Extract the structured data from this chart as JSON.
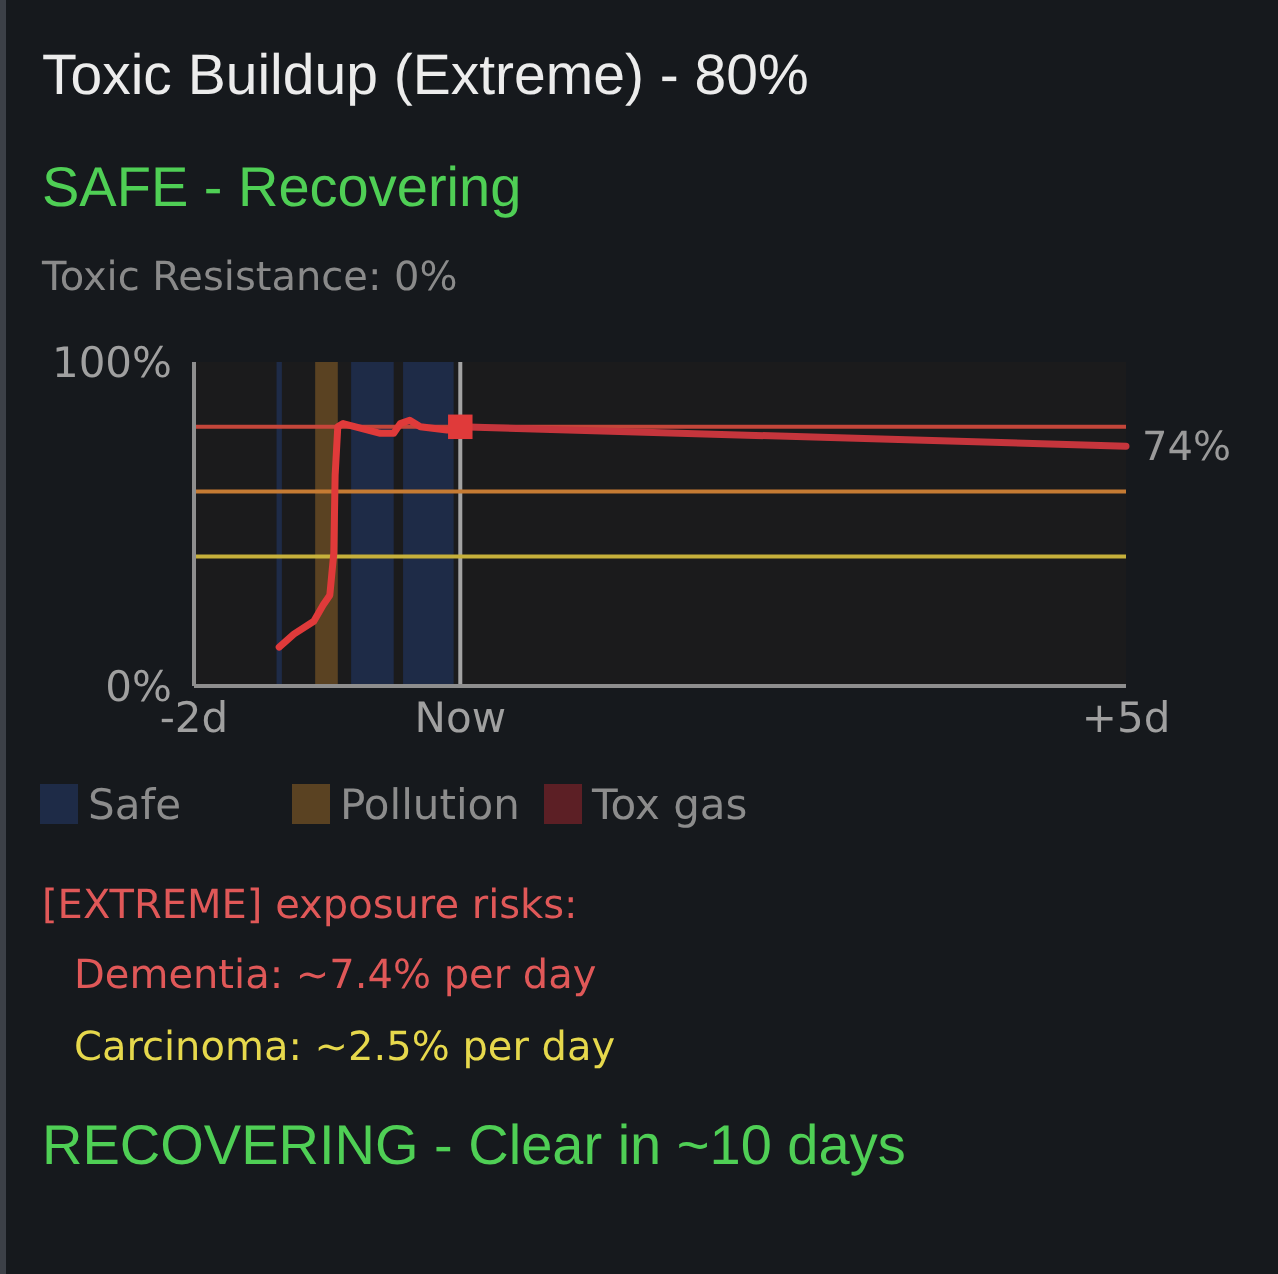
{
  "chart_data": {
    "type": "line",
    "title": "Toxic Buildup (Extreme) - 80%",
    "subtitle": "SAFE - Recovering",
    "xlim": [
      -2,
      5
    ],
    "xticks": [
      {
        "value": -2,
        "label": "-2d"
      },
      {
        "value": 0,
        "label": "Now"
      },
      {
        "value": 5,
        "label": "+5d"
      }
    ],
    "ylim": [
      0,
      100
    ],
    "yticks": [
      {
        "value": 0,
        "label": "0%"
      },
      {
        "value": 100,
        "label": "100%"
      }
    ],
    "series": [
      {
        "color": "#e03a3a",
        "x": [
          -1.36,
          -1.25,
          -1.1,
          -1.03,
          -0.98,
          -0.95,
          -0.94,
          -0.92,
          -0.88,
          -0.6,
          -0.5,
          -0.45,
          -0.38,
          -0.3,
          -0.1,
          0
        ],
        "values": [
          12,
          16,
          20,
          25,
          28,
          41,
          65,
          80,
          81,
          78,
          78,
          81,
          82,
          80,
          79,
          80
        ]
      },
      {
        "color": "#c5353c",
        "x": [
          0,
          5
        ],
        "values": [
          80,
          74
        ]
      },
      {
        "type": "scatter",
        "color": "#e03a3a",
        "marker": "square",
        "x": [
          0
        ],
        "values": [
          80
        ]
      },
      {
        "name": "Tox gas",
        "type": "area",
        "color": "#5c1f25"
      }
    ],
    "bands": [
      {
        "axis": "x",
        "from": -1.38,
        "to": -1.34,
        "label": "Safe",
        "color": "#1e2b47"
      },
      {
        "axis": "x",
        "from": -1.09,
        "to": -0.92,
        "label": "Pollution",
        "color": "#5a4222"
      },
      {
        "axis": "x",
        "from": -0.82,
        "to": -0.5,
        "color": "#1e2b47"
      },
      {
        "axis": "x",
        "from": -0.43,
        "to": -0.05,
        "color": "#1e2b47"
      }
    ],
    "ref_lines": [
      {
        "axis": "x",
        "value": 0,
        "color": "#a3a3a3"
      },
      {
        "axis": "y",
        "value": 80,
        "color": "#c4463a"
      },
      {
        "axis": "y",
        "value": 60,
        "color": "#c57b33"
      },
      {
        "axis": "y",
        "value": 40,
        "color": "#c6b03b"
      }
    ],
    "legend": "bottom",
    "annotations": [
      "Toxic Resistance: 0%",
      {
        "text": "74%",
        "x": 5,
        "y": 74
      },
      "[EXTREME] exposure risks:",
      "Dementia: ~7.4% per day",
      "Carcinoma: ~2.5% per day",
      "RECOVERING - Clear in ~10 days"
    ]
  }
}
